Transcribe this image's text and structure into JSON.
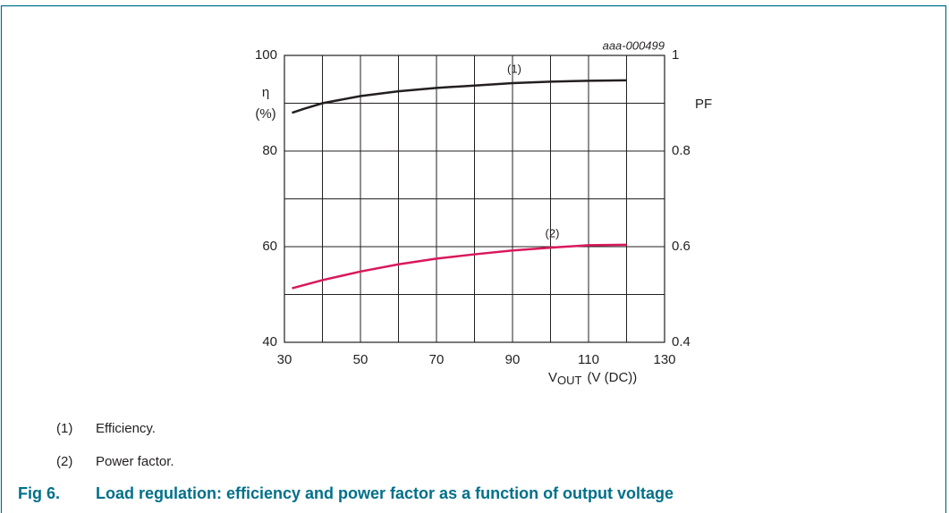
{
  "chart_data": {
    "type": "line",
    "id_label": "aaa-000499",
    "y_label": "η",
    "y_label_unit": "(%)",
    "y2_label": "PF",
    "x_label": "V",
    "x_label_sub": "OUT",
    "x_label_rest": "(V (DC))",
    "xlim": [
      30,
      130
    ],
    "xticks": [
      30,
      50,
      70,
      90,
      110,
      130
    ],
    "xgrid": [
      30,
      40,
      50,
      60,
      70,
      80,
      90,
      100,
      110,
      120,
      130
    ],
    "ylim": [
      40,
      100
    ],
    "yticks": [
      40,
      60,
      80,
      100
    ],
    "ygrid": [
      40,
      50,
      60,
      70,
      80,
      90,
      100
    ],
    "y2lim": [
      0.4,
      1
    ],
    "y2ticks": [
      0.4,
      0.6,
      0.8,
      1
    ],
    "grid": true,
    "series": [
      {
        "label": "(1)",
        "color": "#231f20",
        "x": [
          32,
          35,
          40,
          50,
          60,
          70,
          80,
          90,
          100,
          110,
          120
        ],
        "values": [
          88,
          88.8,
          90,
          91.5,
          92.5,
          93.2,
          93.7,
          94.2,
          94.5,
          94.7,
          94.8
        ]
      },
      {
        "label": "(2)",
        "color": "#d9185c",
        "axis": "y2",
        "x": [
          32,
          40,
          50,
          60,
          70,
          80,
          90,
          100,
          110,
          120
        ],
        "values": [
          0.513,
          0.53,
          0.548,
          0.563,
          0.575,
          0.584,
          0.592,
          0.598,
          0.603,
          0.604
        ]
      }
    ],
    "notes": [
      {
        "marker": "(1)",
        "text": "Efficiency."
      },
      {
        "marker": "(2)",
        "text": "Power factor."
      }
    ],
    "caption_number": "Fig 6.",
    "caption": "Load regulation: efficiency and power factor as a function of output voltage"
  }
}
